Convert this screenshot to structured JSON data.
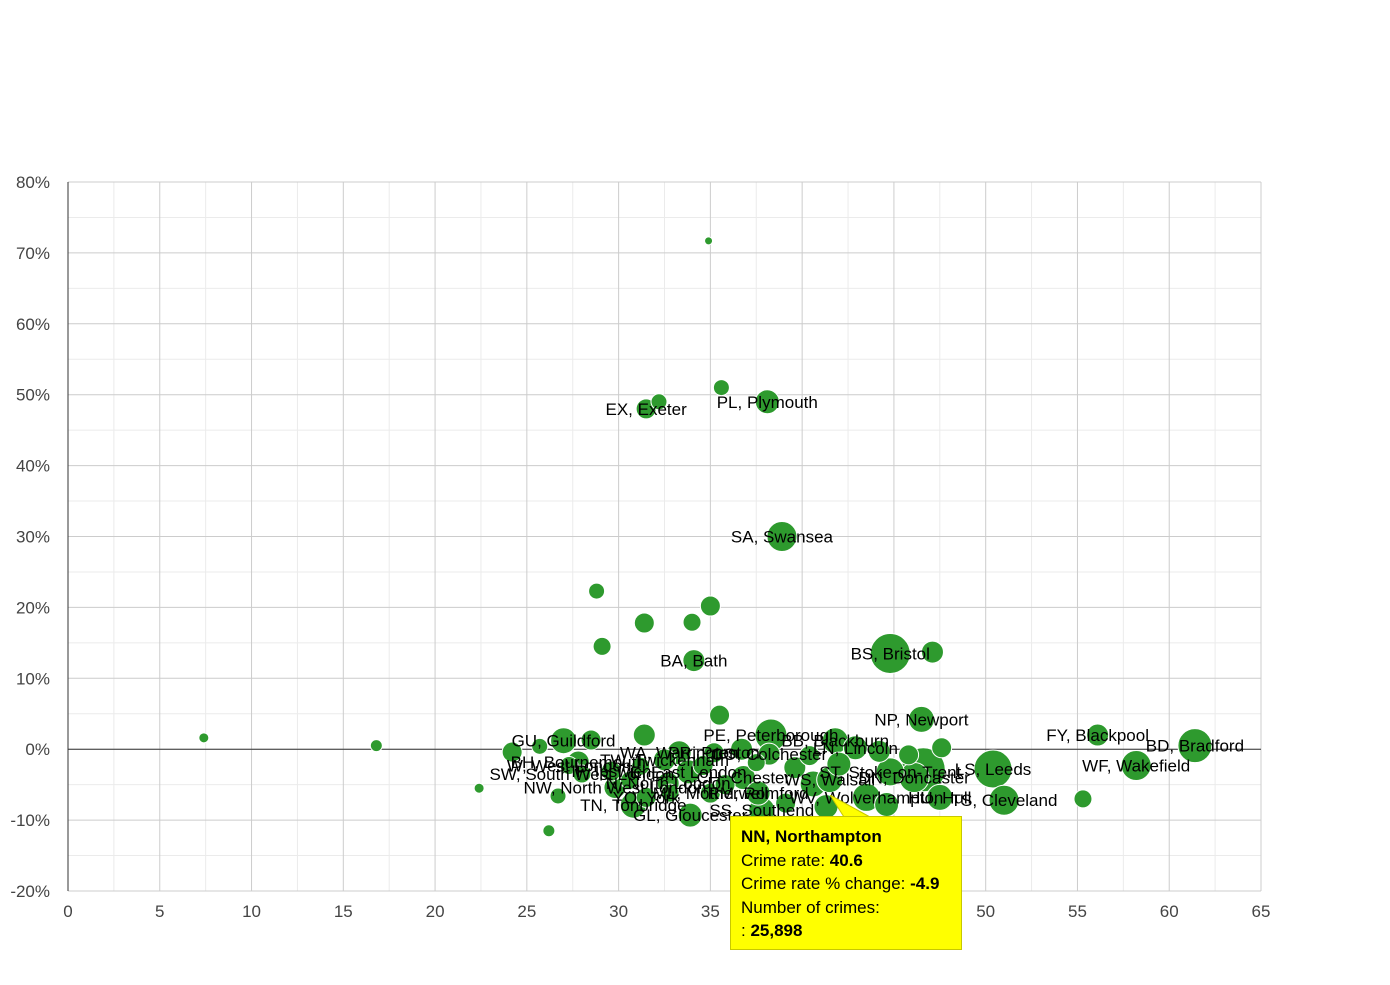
{
  "chart_data": {
    "type": "scatter",
    "title": "",
    "xlabel": "",
    "ylabel": "",
    "xlim": [
      0,
      65
    ],
    "ylim": [
      -20,
      80
    ],
    "x_ticks": [
      0,
      5,
      10,
      15,
      20,
      25,
      30,
      35,
      40,
      45,
      50,
      55,
      60,
      65
    ],
    "x_tick_labels": [
      "0",
      "5",
      "10",
      "15",
      "20",
      "25",
      "30",
      "35",
      "40",
      "45",
      "50",
      "55",
      "60",
      "65"
    ],
    "y_ticks": [
      80,
      70,
      60,
      50,
      40,
      30,
      20,
      10,
      0,
      -10,
      -20
    ],
    "y_tick_labels": [
      "80%",
      "70%",
      "60%",
      "50%",
      "40%",
      "30%",
      "20%",
      "10%",
      "0%",
      "-10%",
      "-20%"
    ],
    "grid": true,
    "bubble_color": "#2e9a2e",
    "series": [
      {
        "name": "EX, Exeter",
        "x": 31.5,
        "y": 48,
        "r": 10,
        "label": "EX, Exeter"
      },
      {
        "name": "",
        "x": 32.2,
        "y": 49,
        "r": 8,
        "label": ""
      },
      {
        "name": "",
        "x": 35.6,
        "y": 51,
        "r": 8,
        "label": ""
      },
      {
        "name": "PL, Plymouth",
        "x": 38.1,
        "y": 49,
        "r": 12,
        "label": "PL, Plymouth"
      },
      {
        "name": "",
        "x": 34.9,
        "y": 71.7,
        "r": 4,
        "label": ""
      },
      {
        "name": "SA, Swansea",
        "x": 38.9,
        "y": 30,
        "r": 15,
        "label": "SA, Swansea"
      },
      {
        "name": "",
        "x": 28.8,
        "y": 22.3,
        "r": 8,
        "label": ""
      },
      {
        "name": "",
        "x": 31.4,
        "y": 17.8,
        "r": 10,
        "label": ""
      },
      {
        "name": "",
        "x": 34,
        "y": 17.9,
        "r": 9,
        "label": ""
      },
      {
        "name": "",
        "x": 35,
        "y": 20.2,
        "r": 10,
        "label": ""
      },
      {
        "name": "",
        "x": 29.1,
        "y": 14.5,
        "r": 9,
        "label": ""
      },
      {
        "name": "BA, Bath",
        "x": 34.1,
        "y": 12.5,
        "r": 11,
        "label": "BA, Bath"
      },
      {
        "name": "BS, Bristol",
        "x": 44.8,
        "y": 13.5,
        "r": 20,
        "label": "BS, Bristol"
      },
      {
        "name": "",
        "x": 47.1,
        "y": 13.7,
        "r": 11,
        "label": ""
      },
      {
        "name": "",
        "x": 35.5,
        "y": 4.8,
        "r": 10,
        "label": ""
      },
      {
        "name": "NP, Newport",
        "x": 46.5,
        "y": 4.2,
        "r": 13,
        "label": "NP, Newport"
      },
      {
        "name": "",
        "x": 47.6,
        "y": 0.2,
        "r": 10,
        "label": ""
      },
      {
        "name": "FY, Blackpool",
        "x": 56.1,
        "y": 2,
        "r": 11,
        "label": "FY, Blackpool"
      },
      {
        "name": "BD, Bradford",
        "x": 61.4,
        "y": 0.5,
        "r": 17,
        "label": "BD, Bradford"
      },
      {
        "name": "WF, Wakefield",
        "x": 58.2,
        "y": -2.3,
        "r": 15,
        "label": "WF, Wakefield"
      },
      {
        "name": "LS, Leeds",
        "x": 50.4,
        "y": -2.8,
        "r": 19,
        "label": "LS, Leeds"
      },
      {
        "name": "TS, Cleveland",
        "x": 51,
        "y": -7.2,
        "r": 15,
        "label": "TS, Cleveland"
      },
      {
        "name": "",
        "x": 55.3,
        "y": -7,
        "r": 9,
        "label": ""
      },
      {
        "name": "",
        "x": 7.4,
        "y": 1.6,
        "r": 5,
        "label": ""
      },
      {
        "name": "",
        "x": 16.8,
        "y": 0.5,
        "r": 6,
        "label": ""
      },
      {
        "name": "",
        "x": 22.4,
        "y": -5.5,
        "r": 5,
        "label": ""
      },
      {
        "name": "",
        "x": 26.2,
        "y": -11.5,
        "r": 6,
        "label": ""
      },
      {
        "name": "",
        "x": 26.7,
        "y": -6.6,
        "r": 8,
        "label": ""
      },
      {
        "name": "GU, Guildford",
        "x": 27,
        "y": 1.2,
        "r": 13,
        "label": "GU, Guildford"
      },
      {
        "name": "",
        "x": 24.2,
        "y": -0.4,
        "r": 10,
        "label": ""
      },
      {
        "name": "",
        "x": 25.7,
        "y": 0.4,
        "r": 8,
        "label": ""
      },
      {
        "name": "",
        "x": 28.5,
        "y": 1.3,
        "r": 10,
        "label": ""
      },
      {
        "name": "",
        "x": 31.4,
        "y": 2,
        "r": 11,
        "label": ""
      },
      {
        "name": "PE, Peterborough",
        "x": 38.3,
        "y": 2,
        "r": 16,
        "label": "PE, Peterborough"
      },
      {
        "name": "BB, Blackburn",
        "x": 41.8,
        "y": 1.2,
        "r": 13,
        "label": "BB, Blackburn"
      },
      {
        "name": "W, West London",
        "x": 27.3,
        "y": -2.3,
        "r": 9,
        "label": "W, West London"
      },
      {
        "name": "BH, Bournemouth",
        "x": 27.8,
        "y": -1.8,
        "r": 11,
        "label": "BH, Bournemouth"
      },
      {
        "name": "SW, South West London",
        "x": 28,
        "y": -3.5,
        "r": 9,
        "label": "SW, South West London"
      },
      {
        "name": "IP, Ipswich",
        "x": 29.6,
        "y": -3.1,
        "r": 10,
        "label": "IP, Ipswich"
      },
      {
        "name": "NW, North West London",
        "x": 29.8,
        "y": -5.4,
        "r": 11,
        "label": "NW, North West London"
      },
      {
        "name": "WA, Warrington",
        "x": 33.3,
        "y": -0.5,
        "r": 12,
        "label": "WA, Warrington"
      },
      {
        "name": "TW, Twickenham",
        "x": 32.5,
        "y": -1.5,
        "r": 11,
        "label": "TW, Twickenham"
      },
      {
        "name": "E, East London",
        "x": 33.8,
        "y": -3.2,
        "r": 12,
        "label": "E, East London"
      },
      {
        "name": "YO, York",
        "x": 31.5,
        "y": -6.8,
        "r": 10,
        "label": "YO, York"
      },
      {
        "name": "TN, Tonbridge",
        "x": 30.8,
        "y": -7.9,
        "r": 13,
        "label": "TN, Tonbridge"
      },
      {
        "name": "GL, Gloucester",
        "x": 33.9,
        "y": -9.3,
        "r": 12,
        "label": "GL, Gloucester"
      },
      {
        "name": "N, North London",
        "x": 32.7,
        "y": -4.8,
        "r": 11,
        "label": "N, North London"
      },
      {
        "name": "ML, Motherwell",
        "x": 35,
        "y": -6.2,
        "r": 10,
        "label": "ML, Motherwell"
      },
      {
        "name": "PR, Preston",
        "x": 35.2,
        "y": -0.5,
        "r": 10,
        "label": "PR, Preston"
      },
      {
        "name": "",
        "x": 36.7,
        "y": 0,
        "r": 11,
        "label": ""
      },
      {
        "name": "CO, Colchester",
        "x": 38.2,
        "y": -0.7,
        "r": 11,
        "label": "CO, Colchester"
      },
      {
        "name": "CH, Chester",
        "x": 36.8,
        "y": -4,
        "r": 12,
        "label": "CH, Chester"
      },
      {
        "name": "RM, Romford",
        "x": 37.6,
        "y": -6.2,
        "r": 12,
        "label": "RM, Romford"
      },
      {
        "name": "SS, Southend",
        "x": 37.8,
        "y": -8.6,
        "r": 13,
        "label": "SS, Southend"
      },
      {
        "name": "NN, Northampton",
        "x": 40.6,
        "y": -4.9,
        "r": 13,
        "label": ""
      },
      {
        "name": "WS, Walsall",
        "x": 41.5,
        "y": -4.3,
        "r": 13,
        "label": "WS, Walsall"
      },
      {
        "name": "WV, Wolverhampton",
        "x": 43.5,
        "y": -6.8,
        "r": 14,
        "label": "WV, Wolverhampton"
      },
      {
        "name": "ST, Stoke-on-Trent",
        "x": 44.8,
        "y": -3.2,
        "r": 14,
        "label": "ST, Stoke-on-Trent"
      },
      {
        "name": "DN, Doncaster",
        "x": 46.1,
        "y": -4,
        "r": 15,
        "label": "DN, Doncaster"
      },
      {
        "name": "HU, Hull",
        "x": 47.5,
        "y": -6.8,
        "r": 13,
        "label": "HU, Hull"
      },
      {
        "name": "LN, Lincoln",
        "x": 42.9,
        "y": 0.2,
        "r": 12,
        "label": "LN, Lincoln"
      },
      {
        "name": "",
        "x": 44.2,
        "y": -0.3,
        "r": 11,
        "label": ""
      },
      {
        "name": "",
        "x": 45.8,
        "y": -0.8,
        "r": 10,
        "label": ""
      },
      {
        "name": "",
        "x": 39.6,
        "y": -2.6,
        "r": 11,
        "label": ""
      },
      {
        "name": "",
        "x": 42,
        "y": -2.1,
        "r": 12,
        "label": ""
      },
      {
        "name": "",
        "x": 46.6,
        "y": -2.9,
        "r": 22,
        "label": ""
      },
      {
        "name": "",
        "x": 34.6,
        "y": -2.3,
        "r": 10,
        "label": ""
      },
      {
        "name": "",
        "x": 35.8,
        "y": -5,
        "r": 10,
        "label": ""
      },
      {
        "name": "",
        "x": 39.1,
        "y": -7.6,
        "r": 10,
        "label": ""
      },
      {
        "name": "",
        "x": 41.3,
        "y": -8.1,
        "r": 12,
        "label": ""
      },
      {
        "name": "",
        "x": 44.6,
        "y": -7.8,
        "r": 12,
        "label": ""
      },
      {
        "name": "",
        "x": 37.5,
        "y": -1.9,
        "r": 9,
        "label": ""
      },
      {
        "name": "",
        "x": 40.4,
        "y": -0.9,
        "r": 10,
        "label": ""
      },
      {
        "name": "",
        "x": 31.2,
        "y": -2.4,
        "r": 9,
        "label": ""
      },
      {
        "name": "",
        "x": 30.6,
        "y": -4.4,
        "r": 9,
        "label": ""
      },
      {
        "name": "",
        "x": 32.8,
        "y": -6.2,
        "r": 9,
        "label": ""
      }
    ]
  },
  "tooltip": {
    "title": "NN, Northampton",
    "crime_rate_label": "Crime rate: ",
    "crime_rate_value": "40.6",
    "change_label": "Crime rate % change: ",
    "change_value": "-4.9",
    "crimes_label": "Number of crimes:",
    "crimes_prefix": ": ",
    "crimes_value": "25,898"
  },
  "colors": {
    "bubble": "#2e9a2e",
    "bubble_stroke": "#ffffff",
    "tooltip_bg": "#ffff00",
    "grid": "#cccccc",
    "minor_grid": "#ebebeb",
    "zero_line": "#333333"
  }
}
